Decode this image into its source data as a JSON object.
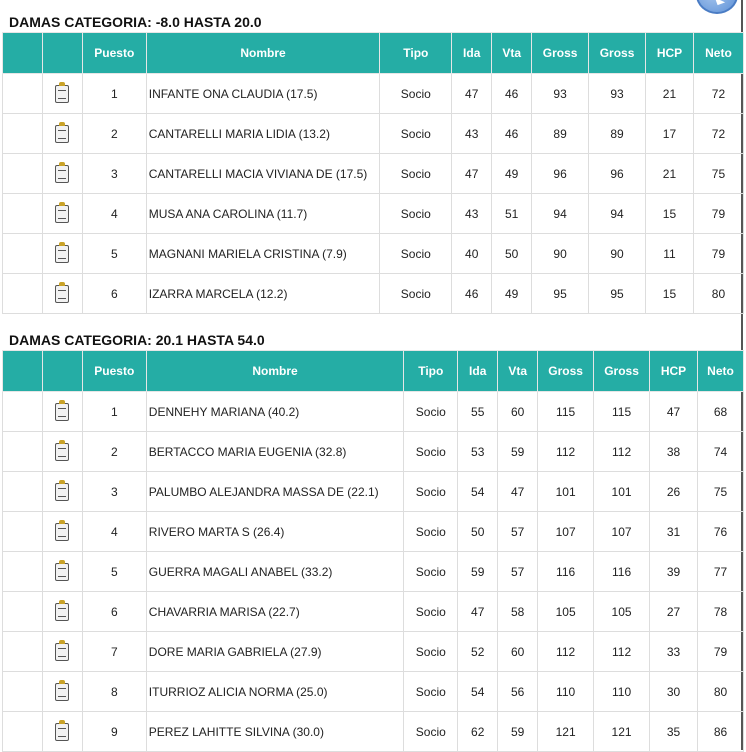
{
  "columns": [
    "",
    "",
    "Puesto",
    "Nombre",
    "Tipo",
    "Ida",
    "Vta",
    "Gross",
    "Gross",
    "HCP",
    "Neto"
  ],
  "accent": "#25ada5",
  "tables": [
    {
      "title": "DAMAS CATEGORIA: -8.0 HASTA 20.0",
      "rows": [
        [
          "1",
          "INFANTE ONA CLAUDIA (17.5)",
          "Socio",
          "47",
          "46",
          "93",
          "93",
          "21",
          "72"
        ],
        [
          "2",
          "CANTARELLI MARIA LIDIA (13.2)",
          "Socio",
          "43",
          "46",
          "89",
          "89",
          "17",
          "72"
        ],
        [
          "3",
          "CANTARELLI MACIA VIVIANA DE (17.5)",
          "Socio",
          "47",
          "49",
          "96",
          "96",
          "21",
          "75"
        ],
        [
          "4",
          "MUSA ANA CAROLINA (11.7)",
          "Socio",
          "43",
          "51",
          "94",
          "94",
          "15",
          "79"
        ],
        [
          "5",
          "MAGNANI MARIELA CRISTINA (7.9)",
          "Socio",
          "40",
          "50",
          "90",
          "90",
          "11",
          "79"
        ],
        [
          "6",
          "IZARRA MARCELA (12.2)",
          "Socio",
          "46",
          "49",
          "95",
          "95",
          "15",
          "80"
        ]
      ]
    },
    {
      "title": "DAMAS CATEGORIA: 20.1 HASTA 54.0",
      "rows": [
        [
          "1",
          "DENNEHY MARIANA (40.2)",
          "Socio",
          "55",
          "60",
          "115",
          "115",
          "47",
          "68"
        ],
        [
          "2",
          "BERTACCO MARIA EUGENIA (32.8)",
          "Socio",
          "53",
          "59",
          "112",
          "112",
          "38",
          "74"
        ],
        [
          "3",
          "PALUMBO ALEJANDRA MASSA DE (22.1)",
          "Socio",
          "54",
          "47",
          "101",
          "101",
          "26",
          "75"
        ],
        [
          "4",
          "RIVERO MARTA S (26.4)",
          "Socio",
          "50",
          "57",
          "107",
          "107",
          "31",
          "76"
        ],
        [
          "5",
          "GUERRA MAGALI ANABEL (33.2)",
          "Socio",
          "59",
          "57",
          "116",
          "116",
          "39",
          "77"
        ],
        [
          "6",
          "CHAVARRIA MARISA (22.7)",
          "Socio",
          "47",
          "58",
          "105",
          "105",
          "27",
          "78"
        ],
        [
          "7",
          "DORE MARIA GABRIELA (27.9)",
          "Socio",
          "52",
          "60",
          "112",
          "112",
          "33",
          "79"
        ],
        [
          "8",
          "ITURRIOZ ALICIA NORMA (25.0)",
          "Socio",
          "54",
          "56",
          "110",
          "110",
          "30",
          "80"
        ],
        [
          "9",
          "PEREZ LAHITTE SILVINA (30.0)",
          "Socio",
          "62",
          "59",
          "121",
          "121",
          "35",
          "86"
        ]
      ]
    }
  ]
}
